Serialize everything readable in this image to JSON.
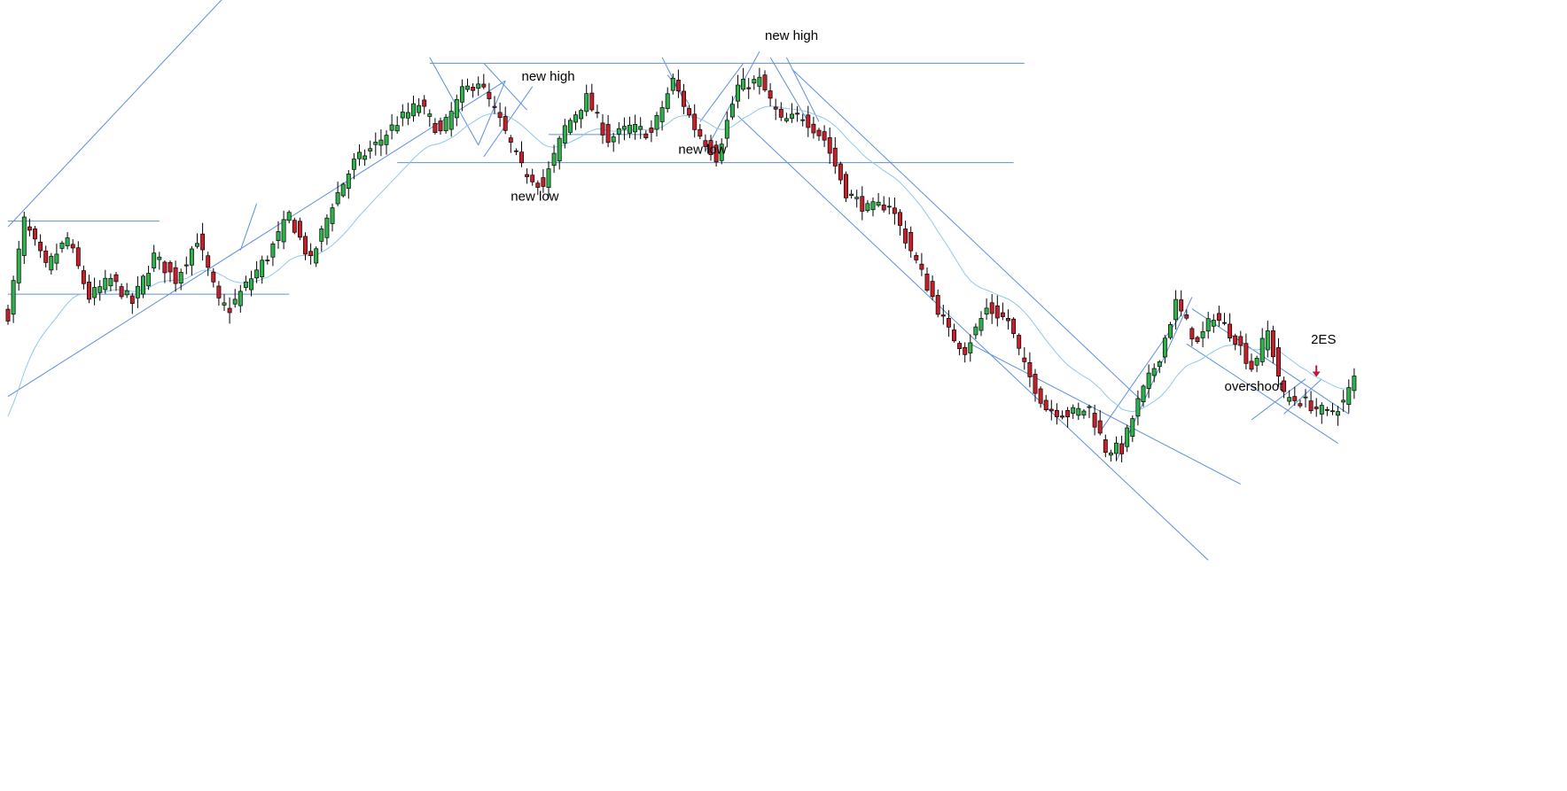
{
  "chart_data": {
    "type": "candlestick",
    "title": "",
    "xlabel": "",
    "ylabel": "",
    "ylim": [
      0,
      100
    ],
    "grid": false,
    "colors": {
      "up": "#2db34a",
      "down": "#c8202a",
      "trendline": "#5b8fde",
      "moving_average": "#8fc8ea",
      "signal_arrow": "#c0143c"
    },
    "anchors": [
      {
        "i": 0,
        "v": 53
      },
      {
        "i": 3,
        "v": 69
      },
      {
        "i": 7,
        "v": 61
      },
      {
        "i": 11,
        "v": 66
      },
      {
        "i": 15,
        "v": 56
      },
      {
        "i": 19,
        "v": 59
      },
      {
        "i": 23,
        "v": 55
      },
      {
        "i": 27,
        "v": 63
      },
      {
        "i": 31,
        "v": 59
      },
      {
        "i": 35,
        "v": 66
      },
      {
        "i": 39,
        "v": 55
      },
      {
        "i": 41,
        "v": 54
      },
      {
        "i": 44,
        "v": 58
      },
      {
        "i": 48,
        "v": 63
      },
      {
        "i": 52,
        "v": 70
      },
      {
        "i": 56,
        "v": 62
      },
      {
        "i": 60,
        "v": 72
      },
      {
        "i": 64,
        "v": 79
      },
      {
        "i": 68,
        "v": 82
      },
      {
        "i": 72,
        "v": 86
      },
      {
        "i": 76,
        "v": 89
      },
      {
        "i": 80,
        "v": 84
      },
      {
        "i": 84,
        "v": 91
      },
      {
        "i": 87,
        "v": 93
      },
      {
        "i": 91,
        "v": 86
      },
      {
        "i": 95,
        "v": 78
      },
      {
        "i": 99,
        "v": 75
      },
      {
        "i": 103,
        "v": 85
      },
      {
        "i": 107,
        "v": 90
      },
      {
        "i": 111,
        "v": 83
      },
      {
        "i": 115,
        "v": 85
      },
      {
        "i": 119,
        "v": 84
      },
      {
        "i": 123,
        "v": 93
      },
      {
        "i": 127,
        "v": 85
      },
      {
        "i": 131,
        "v": 80
      },
      {
        "i": 135,
        "v": 92
      },
      {
        "i": 139,
        "v": 93
      },
      {
        "i": 143,
        "v": 86
      },
      {
        "i": 147,
        "v": 87
      },
      {
        "i": 151,
        "v": 83
      },
      {
        "i": 155,
        "v": 74
      },
      {
        "i": 159,
        "v": 71
      },
      {
        "i": 163,
        "v": 72
      },
      {
        "i": 166,
        "v": 66
      },
      {
        "i": 170,
        "v": 58
      },
      {
        "i": 174,
        "v": 50
      },
      {
        "i": 177,
        "v": 47
      },
      {
        "i": 181,
        "v": 54
      },
      {
        "i": 185,
        "v": 52
      },
      {
        "i": 188,
        "v": 44
      },
      {
        "i": 192,
        "v": 37
      },
      {
        "i": 196,
        "v": 36
      },
      {
        "i": 200,
        "v": 37
      },
      {
        "i": 203,
        "v": 30
      },
      {
        "i": 206,
        "v": 30
      },
      {
        "i": 209,
        "v": 38
      },
      {
        "i": 213,
        "v": 46
      },
      {
        "i": 216,
        "v": 55
      },
      {
        "i": 220,
        "v": 48
      },
      {
        "i": 223,
        "v": 53
      },
      {
        "i": 227,
        "v": 49
      },
      {
        "i": 230,
        "v": 44
      },
      {
        "i": 233,
        "v": 50
      },
      {
        "i": 236,
        "v": 39
      },
      {
        "i": 240,
        "v": 38
      },
      {
        "i": 244,
        "v": 36
      },
      {
        "i": 247,
        "v": 38
      },
      {
        "i": 249,
        "v": 42
      }
    ],
    "annotations": [
      {
        "text": "new high",
        "label_index": 95,
        "label_value": 93
      },
      {
        "text": "new low",
        "label_index": 93,
        "label_value": 72.5
      },
      {
        "text": "new high",
        "label_index": 140,
        "label_value": 100
      },
      {
        "text": "new low",
        "label_index": 124,
        "label_value": 80.5
      },
      {
        "text": "2ES",
        "label_index": 241,
        "label_value": 48
      },
      {
        "text": "overshoot",
        "label_index": 225,
        "label_value": 40
      }
    ],
    "signal": {
      "index": 242,
      "direction": "down"
    },
    "trendlines": [
      {
        "from": {
          "i": 0,
          "v": 68
        },
        "to": {
          "i": 60,
          "v": 127
        }
      },
      {
        "from": {
          "i": 0,
          "v": 39
        },
        "to": {
          "i": 92,
          "v": 93
        }
      },
      {
        "from": {
          "i": 0,
          "v": 69
        },
        "to": {
          "i": 28,
          "v": 69
        }
      },
      {
        "from": {
          "i": 0,
          "v": 56.5
        },
        "to": {
          "i": 52,
          "v": 56.5
        }
      },
      {
        "from": {
          "i": 78,
          "v": 96
        },
        "to": {
          "i": 188,
          "v": 96
        }
      },
      {
        "from": {
          "i": 72,
          "v": 79
        },
        "to": {
          "i": 186,
          "v": 79
        }
      },
      {
        "from": {
          "i": 100,
          "v": 83.8
        },
        "to": {
          "i": 118,
          "v": 83.8
        }
      },
      {
        "from": {
          "i": 78,
          "v": 97
        },
        "to": {
          "i": 87,
          "v": 82
        }
      },
      {
        "from": {
          "i": 87,
          "v": 82
        },
        "to": {
          "i": 92,
          "v": 93
        }
      },
      {
        "from": {
          "i": 88,
          "v": 80
        },
        "to": {
          "i": 97,
          "v": 92
        }
      },
      {
        "from": {
          "i": 96,
          "v": 88
        },
        "to": {
          "i": 88,
          "v": 96
        }
      },
      {
        "from": {
          "i": 121,
          "v": 97
        },
        "to": {
          "i": 127,
          "v": 86
        }
      },
      {
        "from": {
          "i": 122,
          "v": 94
        },
        "to": {
          "i": 126,
          "v": 89
        }
      },
      {
        "from": {
          "i": 129,
          "v": 81
        },
        "to": {
          "i": 139,
          "v": 98
        }
      },
      {
        "from": {
          "i": 128,
          "v": 86
        },
        "to": {
          "i": 136,
          "v": 96
        }
      },
      {
        "from": {
          "i": 141,
          "v": 97
        },
        "to": {
          "i": 148,
          "v": 86
        }
      },
      {
        "from": {
          "i": 144,
          "v": 97
        },
        "to": {
          "i": 150,
          "v": 86
        }
      },
      {
        "from": {
          "i": 135,
          "v": 87
        },
        "to": {
          "i": 222,
          "v": 11
        }
      },
      {
        "from": {
          "i": 145,
          "v": 95
        },
        "to": {
          "i": 210,
          "v": 38
        }
      },
      {
        "from": {
          "i": 178,
          "v": 48
        },
        "to": {
          "i": 228,
          "v": 24
        }
      },
      {
        "from": {
          "i": 205,
          "v": 28
        },
        "to": {
          "i": 219,
          "v": 56
        }
      },
      {
        "from": {
          "i": 202,
          "v": 33
        },
        "to": {
          "i": 217,
          "v": 53
        }
      },
      {
        "from": {
          "i": 219,
          "v": 54
        },
        "to": {
          "i": 248,
          "v": 36
        }
      },
      {
        "from": {
          "i": 218,
          "v": 48
        },
        "to": {
          "i": 246,
          "v": 31
        }
      },
      {
        "from": {
          "i": 230,
          "v": 35
        },
        "to": {
          "i": 240,
          "v": 42
        }
      },
      {
        "from": {
          "i": 236,
          "v": 36
        },
        "to": {
          "i": 243,
          "v": 42
        }
      },
      {
        "from": {
          "i": 43,
          "v": 64
        },
        "to": {
          "i": 46,
          "v": 72
        }
      }
    ]
  }
}
